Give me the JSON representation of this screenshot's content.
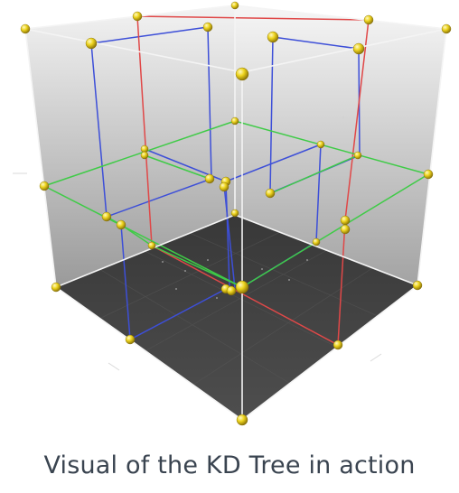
{
  "caption": "Visual of the KD Tree in action",
  "colors": {
    "wall_gradient_top": "#f1f1f1",
    "wall_gradient_bottom": "#9c9c9c",
    "floor": "#464646",
    "edge": "#f4f4f4",
    "split_x": "#e04848",
    "split_y": "#3d4fd8",
    "split_z": "#3fcb47",
    "point": "#e8d21c"
  },
  "icons": {
    "point_marker": "yellow-sphere-icon"
  }
}
